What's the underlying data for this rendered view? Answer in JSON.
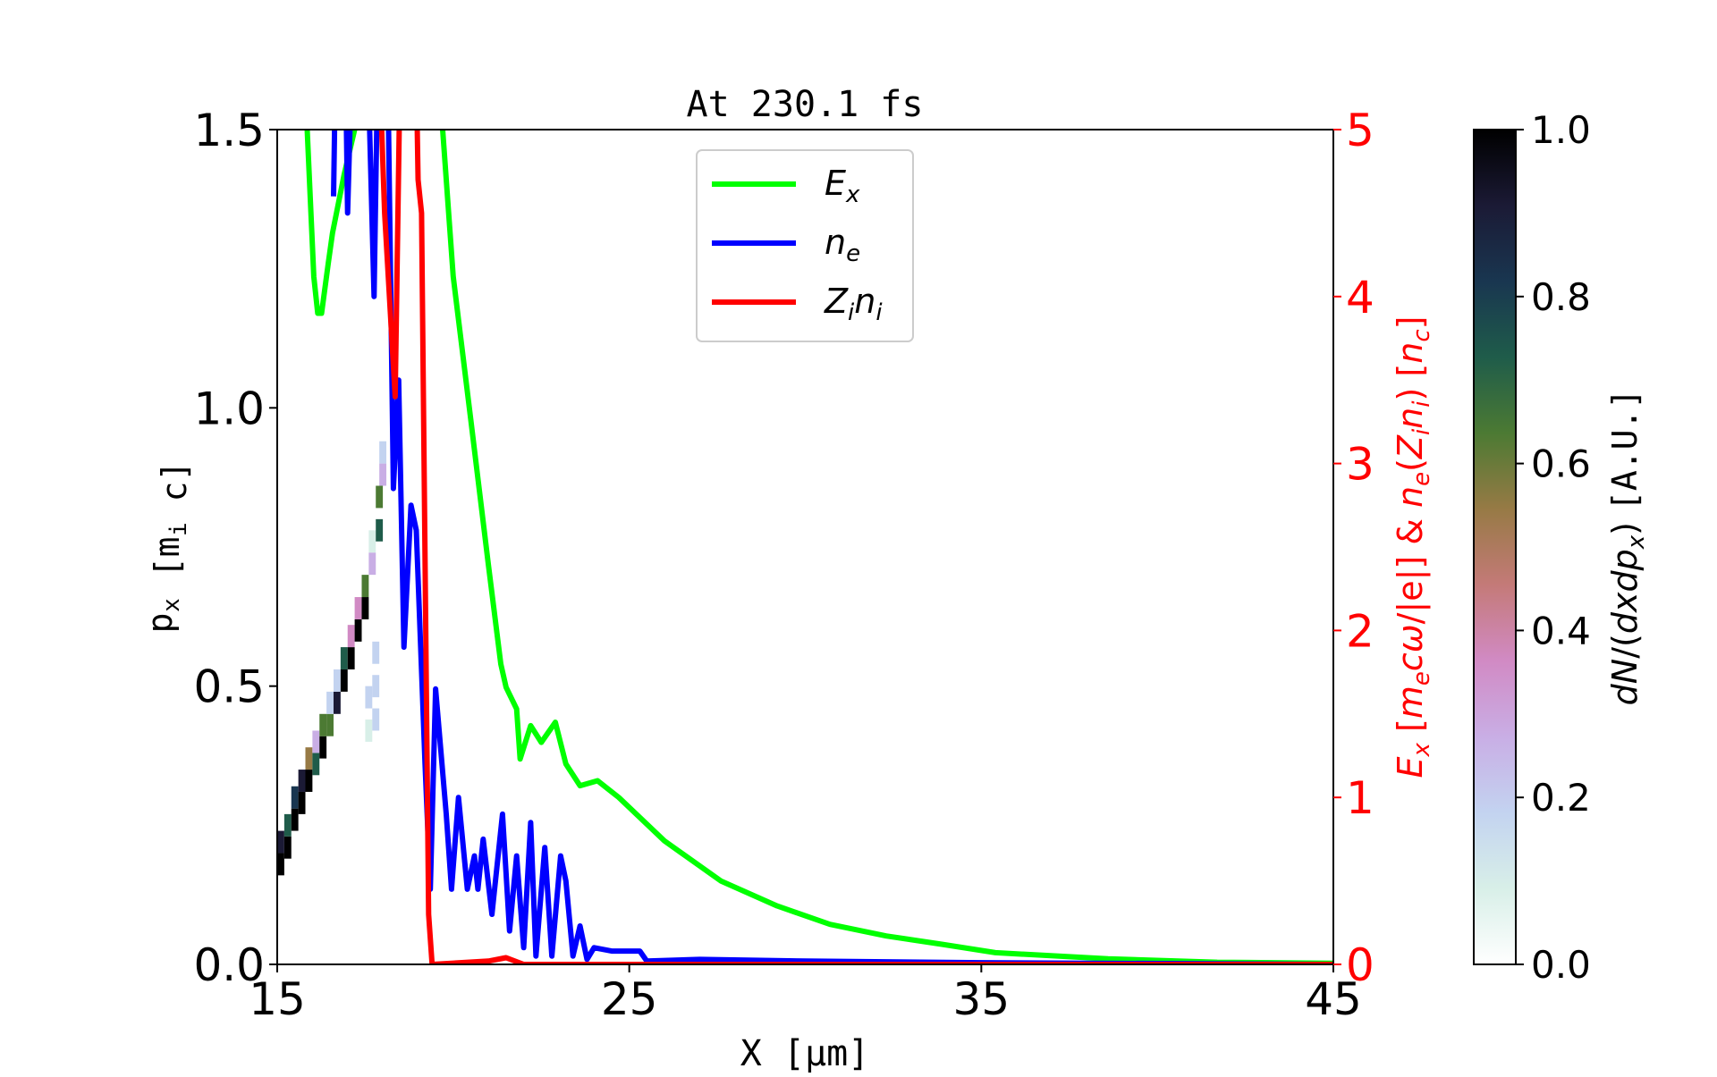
{
  "chart_data": {
    "type": "line",
    "title": "At 230.1 fs",
    "xlabel": "X [μm]",
    "ylabel": "p_x [m_i c]",
    "ylabel_right": "E_x [m_e cω/|e|] & n_e(Z_i n_i) [n_c]",
    "xlim": [
      15,
      45
    ],
    "ylim": [
      0,
      1.5
    ],
    "ylim_right": [
      0,
      5
    ],
    "xticks": [
      "15",
      "25",
      "35",
      "45"
    ],
    "xtick_values": [
      15,
      25,
      35,
      45
    ],
    "yticks": [
      "0.0",
      "0.5",
      "1.0",
      "1.5"
    ],
    "ytick_values": [
      0,
      0.5,
      1.0,
      1.5
    ],
    "yticks_right": [
      "0",
      "1",
      "2",
      "3",
      "4",
      "5"
    ],
    "ytick_right_values": [
      0,
      1,
      2,
      3,
      4,
      5
    ],
    "legend_position": "top-center",
    "series": [
      {
        "name": "E_x",
        "label_main": "E",
        "label_sub": "x",
        "color": "#00ff00",
        "axis": "right",
        "points": [
          [
            15.8,
            6
          ],
          [
            15.85,
            5
          ],
          [
            16.04,
            4.12
          ],
          [
            16.15,
            3.9
          ],
          [
            16.26,
            3.9
          ],
          [
            16.45,
            4.2
          ],
          [
            16.57,
            4.38
          ],
          [
            16.9,
            4.73
          ],
          [
            17.2,
            5
          ],
          [
            17.4,
            6
          ],
          [
            19.6,
            6
          ],
          [
            19.7,
            5
          ],
          [
            20.0,
            4.12
          ],
          [
            20.5,
            3.26
          ],
          [
            21.0,
            2.39
          ],
          [
            21.35,
            1.8
          ],
          [
            21.5,
            1.66
          ],
          [
            21.8,
            1.53
          ],
          [
            21.9,
            1.23
          ],
          [
            22.2,
            1.43
          ],
          [
            22.5,
            1.33
          ],
          [
            22.9,
            1.45
          ],
          [
            23.2,
            1.2
          ],
          [
            23.6,
            1.07
          ],
          [
            24.1,
            1.1
          ],
          [
            24.7,
            1.0
          ],
          [
            26.0,
            0.74
          ],
          [
            27.6,
            0.5
          ],
          [
            29.2,
            0.35
          ],
          [
            30.7,
            0.24
          ],
          [
            32.3,
            0.17
          ],
          [
            33.9,
            0.12
          ],
          [
            35.4,
            0.07
          ],
          [
            38.6,
            0.033
          ],
          [
            41.7,
            0.013
          ],
          [
            45,
            0.007
          ]
        ]
      },
      {
        "name": "n_e",
        "label_main": "n",
        "label_sub": "e",
        "color": "#0000ff",
        "axis": "right",
        "points": [
          [
            16.6,
            4.6
          ],
          [
            16.7,
            6
          ],
          [
            16.9,
            6
          ],
          [
            17.0,
            4.5
          ],
          [
            17.2,
            6
          ],
          [
            17.5,
            6
          ],
          [
            17.75,
            4
          ],
          [
            17.9,
            6
          ],
          [
            18.1,
            6
          ],
          [
            18.3,
            2.85
          ],
          [
            18.45,
            3.5
          ],
          [
            18.6,
            1.9
          ],
          [
            18.8,
            2.75
          ],
          [
            18.95,
            2.6
          ],
          [
            19.2,
            1.2
          ],
          [
            19.35,
            0.45
          ],
          [
            19.5,
            1.65
          ],
          [
            19.8,
            0.9
          ],
          [
            19.95,
            0.45
          ],
          [
            20.15,
            1.0
          ],
          [
            20.4,
            0.45
          ],
          [
            20.6,
            0.65
          ],
          [
            20.7,
            0.45
          ],
          [
            20.85,
            0.75
          ],
          [
            21.1,
            0.3
          ],
          [
            21.4,
            0.9
          ],
          [
            21.6,
            0.2
          ],
          [
            21.8,
            0.65
          ],
          [
            22.0,
            0.1
          ],
          [
            22.2,
            0.85
          ],
          [
            22.35,
            0.05
          ],
          [
            22.6,
            0.7
          ],
          [
            22.8,
            0.05
          ],
          [
            23.05,
            0.65
          ],
          [
            23.2,
            0.5
          ],
          [
            23.4,
            0.05
          ],
          [
            23.6,
            0.23
          ],
          [
            23.8,
            0.03
          ],
          [
            24.0,
            0.1
          ],
          [
            24.5,
            0.08
          ],
          [
            25.3,
            0.08
          ],
          [
            25.5,
            0.02
          ],
          [
            27,
            0.03
          ],
          [
            30,
            0.02
          ],
          [
            35,
            0.01
          ],
          [
            45,
            0
          ]
        ]
      },
      {
        "name": "Z_i n_i",
        "label_main": "Z",
        "label_sub": "i",
        "label_main2": "n",
        "label_sub2": "i",
        "color": "#ff0000",
        "axis": "right",
        "points": [
          [
            17.8,
            6
          ],
          [
            18.05,
            4.5
          ],
          [
            18.35,
            3.4
          ],
          [
            18.5,
            5.5
          ],
          [
            18.9,
            6
          ],
          [
            19.0,
            4.7
          ],
          [
            19.1,
            4.5
          ],
          [
            19.3,
            0.3
          ],
          [
            19.4,
            0.0
          ],
          [
            21,
            0.02
          ],
          [
            21.5,
            0.04
          ],
          [
            22,
            0
          ],
          [
            45,
            0
          ]
        ]
      }
    ],
    "heatmap": {
      "type": "heatmap",
      "axis": "left",
      "colorbar_label": "dN/(dxdp_x) [A.U.]",
      "colorbar_ticks": [
        "0.0",
        "0.2",
        "0.4",
        "0.6",
        "0.8",
        "1.0"
      ],
      "colorbar_tick_values": [
        0,
        0.2,
        0.4,
        0.6,
        0.8,
        1.0
      ],
      "clim": [
        0,
        1
      ],
      "cells": [
        [
          15.1,
          0.18,
          1
        ],
        [
          15.1,
          0.22,
          0.9
        ],
        [
          15.3,
          0.21,
          1
        ],
        [
          15.3,
          0.25,
          0.7
        ],
        [
          15.5,
          0.26,
          1
        ],
        [
          15.5,
          0.3,
          0.8
        ],
        [
          15.7,
          0.29,
          1
        ],
        [
          15.7,
          0.33,
          0.9
        ],
        [
          15.9,
          0.33,
          1
        ],
        [
          15.9,
          0.37,
          0.5
        ],
        [
          16.1,
          0.36,
          0.7
        ],
        [
          16.1,
          0.4,
          0.3
        ],
        [
          16.3,
          0.39,
          1
        ],
        [
          16.3,
          0.43,
          0.6
        ],
        [
          16.5,
          0.43,
          0.6
        ],
        [
          16.5,
          0.47,
          0.15
        ],
        [
          16.7,
          0.47,
          0.9
        ],
        [
          16.7,
          0.51,
          0.2
        ],
        [
          16.9,
          0.51,
          1
        ],
        [
          16.9,
          0.55,
          0.7
        ],
        [
          17.1,
          0.55,
          1
        ],
        [
          17.1,
          0.59,
          0.4
        ],
        [
          17.3,
          0.6,
          1
        ],
        [
          17.3,
          0.64,
          0.4
        ],
        [
          17.5,
          0.64,
          1
        ],
        [
          17.5,
          0.68,
          0.6
        ],
        [
          17.7,
          0.72,
          0.3
        ],
        [
          17.7,
          0.76,
          0.1
        ],
        [
          17.6,
          0.48,
          0.15
        ],
        [
          17.6,
          0.42,
          0.1
        ],
        [
          17.8,
          0.5,
          0.2
        ],
        [
          17.8,
          0.44,
          0.15
        ],
        [
          17.8,
          0.56,
          0.2
        ],
        [
          17.9,
          0.78,
          0.7
        ],
        [
          17.9,
          0.84,
          0.6
        ],
        [
          18.0,
          0.88,
          0.25
        ],
        [
          18.0,
          0.92,
          0.2
        ],
        [
          18.7,
          0.83,
          0.04
        ],
        [
          19.1,
          0.85,
          0.03
        ],
        [
          19.5,
          0.87,
          0.03
        ],
        [
          19.9,
          0.9,
          0.02
        ],
        [
          20.3,
          0.93,
          0.01
        ]
      ],
      "colormap": [
        "#ffffff",
        "#d8efe8",
        "#c3d3f0",
        "#c9aee5",
        "#d18ac4",
        "#c47a78",
        "#977a45",
        "#4c7a33",
        "#1f5c4a",
        "#193650",
        "#1b1a35",
        "#000000"
      ]
    }
  }
}
